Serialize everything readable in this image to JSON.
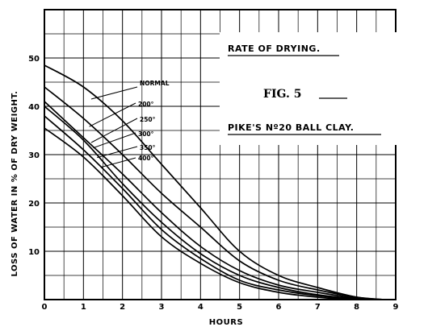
{
  "chart_data": {
    "type": "line",
    "title": "RATE OF DRYING.",
    "figure_label": "FIG. 5",
    "subtitle": "PIKE'S Nº20 BALL CLAY.",
    "xlabel": "HOURS",
    "ylabel": "LOSS OF WATER IN % OF DRY WEIGHT.",
    "xlim": [
      0,
      9
    ],
    "ylim": [
      0,
      60
    ],
    "x_ticks": [
      0,
      1,
      2,
      3,
      4,
      5,
      6,
      7,
      8,
      9
    ],
    "y_ticks": [
      10,
      20,
      30,
      40,
      50
    ],
    "grid": true,
    "series": [
      {
        "name": "NORMAL",
        "points": [
          [
            0,
            48.5
          ],
          [
            1,
            44
          ],
          [
            2,
            37
          ],
          [
            3,
            28
          ],
          [
            4,
            19
          ],
          [
            5,
            10
          ],
          [
            6,
            5
          ],
          [
            7,
            2.5
          ],
          [
            8,
            0.5
          ],
          [
            8.7,
            0
          ]
        ]
      },
      {
        "name": "200°",
        "points": [
          [
            0,
            44
          ],
          [
            1,
            37.5
          ],
          [
            2,
            30
          ],
          [
            3,
            22
          ],
          [
            4,
            15
          ],
          [
            5,
            8
          ],
          [
            6,
            4
          ],
          [
            7,
            2
          ],
          [
            8,
            0.5
          ],
          [
            8.7,
            0
          ]
        ]
      },
      {
        "name": "250°",
        "points": [
          [
            0,
            41
          ],
          [
            1,
            33.5
          ],
          [
            2,
            26
          ],
          [
            3,
            18
          ],
          [
            4,
            11
          ],
          [
            5,
            6
          ],
          [
            6,
            3
          ],
          [
            7,
            1.5
          ],
          [
            8,
            0.3
          ],
          [
            8.7,
            0
          ]
        ]
      },
      {
        "name": "300°",
        "points": [
          [
            0,
            40
          ],
          [
            1,
            33
          ],
          [
            2,
            24
          ],
          [
            3,
            16
          ],
          [
            4,
            9.5
          ],
          [
            5,
            5
          ],
          [
            6,
            2.5
          ],
          [
            7,
            1
          ],
          [
            8,
            0.2
          ],
          [
            8.7,
            0
          ]
        ]
      },
      {
        "name": "350°",
        "points": [
          [
            0,
            38
          ],
          [
            1,
            31
          ],
          [
            2,
            23
          ],
          [
            3,
            14.5
          ],
          [
            4,
            8.5
          ],
          [
            5,
            4
          ],
          [
            6,
            2
          ],
          [
            7,
            0.8
          ],
          [
            8,
            0.1
          ],
          [
            8.7,
            0
          ]
        ]
      },
      {
        "name": "400°",
        "points": [
          [
            0,
            35.5
          ],
          [
            1,
            29.5
          ],
          [
            2,
            21.5
          ],
          [
            3,
            13
          ],
          [
            4,
            7.5
          ],
          [
            5,
            3.5
          ],
          [
            6,
            1.5
          ],
          [
            7,
            0.5
          ],
          [
            8,
            0
          ],
          [
            8.7,
            0
          ]
        ]
      }
    ]
  }
}
